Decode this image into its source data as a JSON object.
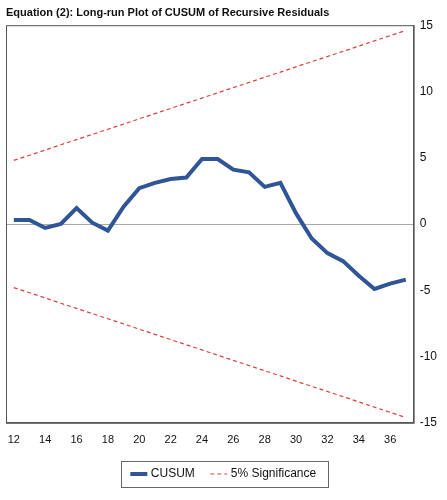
{
  "chart_data": {
    "type": "line",
    "title": "Equation (2): Long-run Plot of CUSUM of Recursive Residuals",
    "x": [
      12,
      13,
      14,
      15,
      16,
      17,
      18,
      19,
      20,
      21,
      22,
      23,
      24,
      25,
      26,
      27,
      28,
      29,
      30,
      31,
      32,
      33,
      34,
      35,
      36,
      37
    ],
    "series": [
      {
        "name": "CUSUM",
        "color": "#2f5597",
        "line_style": "solid",
        "values": [
          0.3,
          0.3,
          -0.3,
          0.0,
          1.2,
          0.1,
          -0.5,
          1.3,
          2.7,
          3.1,
          3.4,
          3.5,
          4.9,
          4.9,
          4.1,
          3.9,
          2.8,
          3.1,
          0.8,
          -1.1,
          -2.2,
          -2.8,
          -3.9,
          -4.9,
          -4.5,
          -4.2
        ]
      },
      {
        "name": "5% Significance",
        "color": "#e0403a",
        "line_style": "dashed",
        "values": [
          4.8,
          5.19,
          5.58,
          5.98,
          6.37,
          6.76,
          7.15,
          7.54,
          7.94,
          8.33,
          8.72,
          9.11,
          9.5,
          9.9,
          10.29,
          10.68,
          11.07,
          11.46,
          11.86,
          12.25,
          12.64,
          13.03,
          13.42,
          13.82,
          14.21,
          14.6
        ]
      },
      {
        "name": "5% Significance",
        "color": "#e0403a",
        "line_style": "dashed",
        "values": [
          -4.8,
          -5.19,
          -5.58,
          -5.98,
          -6.37,
          -6.76,
          -7.15,
          -7.54,
          -7.94,
          -8.33,
          -8.72,
          -9.11,
          -9.5,
          -9.9,
          -10.29,
          -10.68,
          -11.07,
          -11.46,
          -11.86,
          -12.25,
          -12.64,
          -13.03,
          -13.42,
          -13.82,
          -14.21,
          -14.6
        ]
      }
    ],
    "xlim": [
      11.5,
      37.5
    ],
    "xticks": [
      12,
      14,
      16,
      18,
      20,
      22,
      24,
      26,
      28,
      30,
      32,
      34,
      36
    ],
    "ylim": [
      -15,
      15
    ],
    "yticks": [
      -15,
      -10,
      -5,
      0,
      5,
      10,
      15
    ],
    "grid": false,
    "legend": "bottom"
  }
}
